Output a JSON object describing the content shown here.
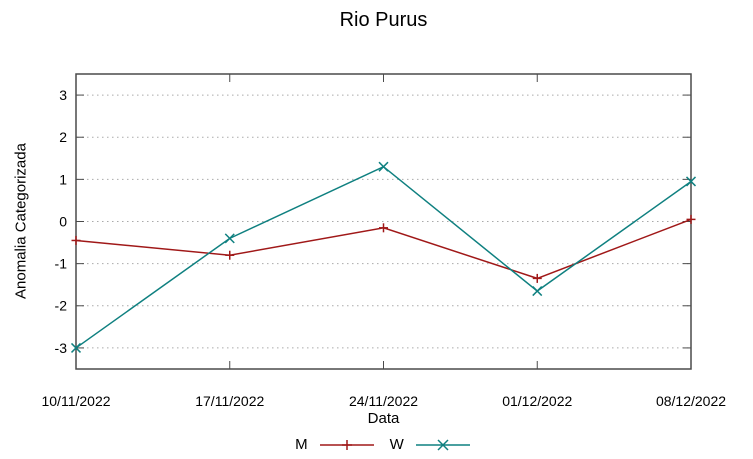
{
  "chart_data": {
    "type": "line",
    "title": "Rio Purus",
    "xlabel": "Data",
    "ylabel": "Anomalia Categorizada",
    "categories": [
      "10/11/2022",
      "17/11/2022",
      "24/11/2022",
      "01/12/2022",
      "08/12/2022"
    ],
    "yticks": [
      3,
      2,
      1,
      0,
      -1,
      -2,
      -3
    ],
    "ylim": [
      -3.5,
      3.5
    ],
    "grid": "horizontal-dotted",
    "legend_position": "bottom-center",
    "series": [
      {
        "name": "M",
        "color": "#a01818",
        "marker": "plus",
        "values": [
          -0.45,
          -0.8,
          -0.15,
          -1.35,
          0.05
        ]
      },
      {
        "name": "W",
        "color": "#0f8080",
        "marker": "cross",
        "values": [
          -3.0,
          -0.4,
          1.3,
          -1.65,
          0.95
        ]
      }
    ],
    "axis_color": "#4a4a4a",
    "grid_color": "#aaaaaa",
    "background_color": "#ffffff",
    "text_color": "#000000"
  }
}
